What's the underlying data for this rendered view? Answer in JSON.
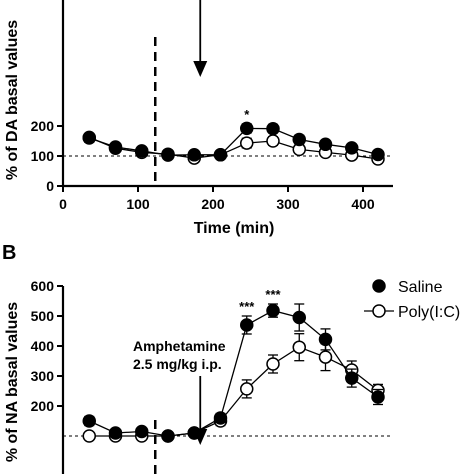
{
  "chart_data": [
    {
      "type": "line",
      "panel_label": "",
      "xlabel": "Time (min)",
      "ylabel": "% of DA basal values",
      "xlim": [
        0,
        440
      ],
      "ylim": [
        0,
        250
      ],
      "xticks": [
        "0",
        "100",
        "200",
        "300",
        "400"
      ],
      "yticks": [
        "0",
        "100",
        "200"
      ],
      "baseline": 100,
      "injection_time": 123,
      "arrow_time": 183,
      "x": [
        35,
        70,
        105,
        140,
        175,
        210,
        245,
        280,
        315,
        350,
        385,
        420
      ],
      "series": [
        {
          "name": "Saline",
          "marker": "filled",
          "values": [
            160,
            130,
            117,
            103,
            104,
            104,
            192,
            191,
            155,
            139,
            127,
            105
          ],
          "err": [
            14,
            8,
            6,
            8,
            6,
            5,
            15,
            14,
            14,
            9,
            9,
            7
          ]
        },
        {
          "name": "Poly(I:C)",
          "marker": "open",
          "values": [
            162,
            126,
            112,
            106,
            93,
            104,
            143,
            150,
            122,
            112,
            103,
            90
          ],
          "err": [
            12,
            9,
            6,
            7,
            5,
            6,
            16,
            14,
            9,
            7,
            6,
            7
          ]
        }
      ],
      "annotations": [
        {
          "x": 245,
          "text": "*"
        }
      ]
    },
    {
      "type": "line",
      "panel_label": "B",
      "xlabel": "",
      "ylabel": "% of NA basal values",
      "xlim": [
        0,
        440
      ],
      "ylim": [
        100,
        600
      ],
      "yticks": [
        "200",
        "300",
        "400",
        "500",
        "600"
      ],
      "baseline": 100,
      "injection_time": 123,
      "arrow_time": 183,
      "x": [
        35,
        70,
        105,
        140,
        175,
        210,
        245,
        280,
        315,
        350,
        385,
        420
      ],
      "series": [
        {
          "name": "Saline",
          "marker": "filled",
          "values": [
            150,
            110,
            115,
            100,
            110,
            160,
            470,
            518,
            495,
            422,
            293,
            230
          ],
          "err": [
            15,
            8,
            10,
            8,
            8,
            15,
            30,
            22,
            45,
            35,
            30,
            25
          ]
        },
        {
          "name": "Poly(I:C)",
          "marker": "open",
          "values": [
            100,
            100,
            100,
            100,
            110,
            150,
            257,
            340,
            396,
            363,
            320,
            252
          ],
          "err": [
            10,
            8,
            8,
            8,
            8,
            15,
            30,
            30,
            45,
            45,
            30,
            20
          ]
        }
      ],
      "annotations": [
        {
          "x": 245,
          "text": "***"
        },
        {
          "x": 280,
          "text": "***"
        }
      ],
      "arrow_label": [
        "Amphetamine",
        "2.5 mg/kg i.p."
      ],
      "legend": {
        "position": "top-right",
        "entries": [
          "Saline",
          "Poly(I:C)"
        ]
      }
    }
  ]
}
